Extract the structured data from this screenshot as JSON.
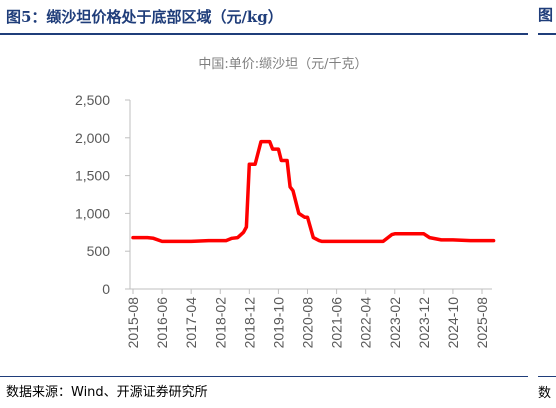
{
  "figure": {
    "title": "图5：缬沙坦价格处于底部区域（元/kg）",
    "source": "数据来源：Wind、开源证券研究所",
    "next_panel_title_fragment": "图",
    "next_panel_source_fragment": "数"
  },
  "colors": {
    "title": "#1f3d7a",
    "series_line": "#ff0000",
    "axis": "#bfbfbf",
    "tick_text": "#595959"
  },
  "chart_data": {
    "type": "line",
    "title": "中国:单价:缬沙坦（元/千克）",
    "xlabel": "",
    "ylabel": "",
    "ylim": [
      0,
      2500
    ],
    "yticks": [
      0,
      500,
      1000,
      1500,
      2000,
      2500
    ],
    "ytick_labels": [
      "0",
      "500",
      "1,000",
      "1,500",
      "2,000",
      "2,500"
    ],
    "xtick_labels": [
      "2015-08",
      "2016-06",
      "2017-04",
      "2018-02",
      "2018-12",
      "2019-10",
      "2020-08",
      "2021-06",
      "2022-04",
      "2023-02",
      "2023-12",
      "2024-10",
      "2025-08"
    ],
    "grid": false,
    "legend": "none",
    "series": [
      {
        "x": [
          "2015-08",
          "2016-01",
          "2016-03",
          "2016-06",
          "2017-01",
          "2017-04",
          "2017-10",
          "2018-02",
          "2018-04",
          "2018-06",
          "2018-08",
          "2018-10",
          "2018-11",
          "2018-12",
          "2019-01",
          "2019-02",
          "2019-04",
          "2019-05",
          "2019-07",
          "2019-08",
          "2019-10",
          "2019-11",
          "2020-01",
          "2020-02",
          "2020-03",
          "2020-05",
          "2020-07",
          "2020-08",
          "2020-10",
          "2020-12",
          "2021-01",
          "2021-03",
          "2021-06",
          "2022-01",
          "2022-04",
          "2022-07",
          "2022-10",
          "2022-11",
          "2023-01",
          "2023-02",
          "2023-06",
          "2023-10",
          "2023-12",
          "2024-02",
          "2024-06",
          "2024-10",
          "2025-04",
          "2025-08",
          "2025-12"
        ],
        "values": [
          680,
          680,
          670,
          630,
          630,
          630,
          640,
          640,
          640,
          670,
          680,
          750,
          820,
          1650,
          1650,
          1650,
          1950,
          1950,
          1950,
          1850,
          1850,
          1700,
          1700,
          1350,
          1300,
          1000,
          950,
          950,
          680,
          640,
          630,
          630,
          630,
          630,
          630,
          630,
          630,
          660,
          720,
          730,
          730,
          730,
          730,
          680,
          650,
          650,
          640,
          640,
          640
        ]
      }
    ]
  }
}
